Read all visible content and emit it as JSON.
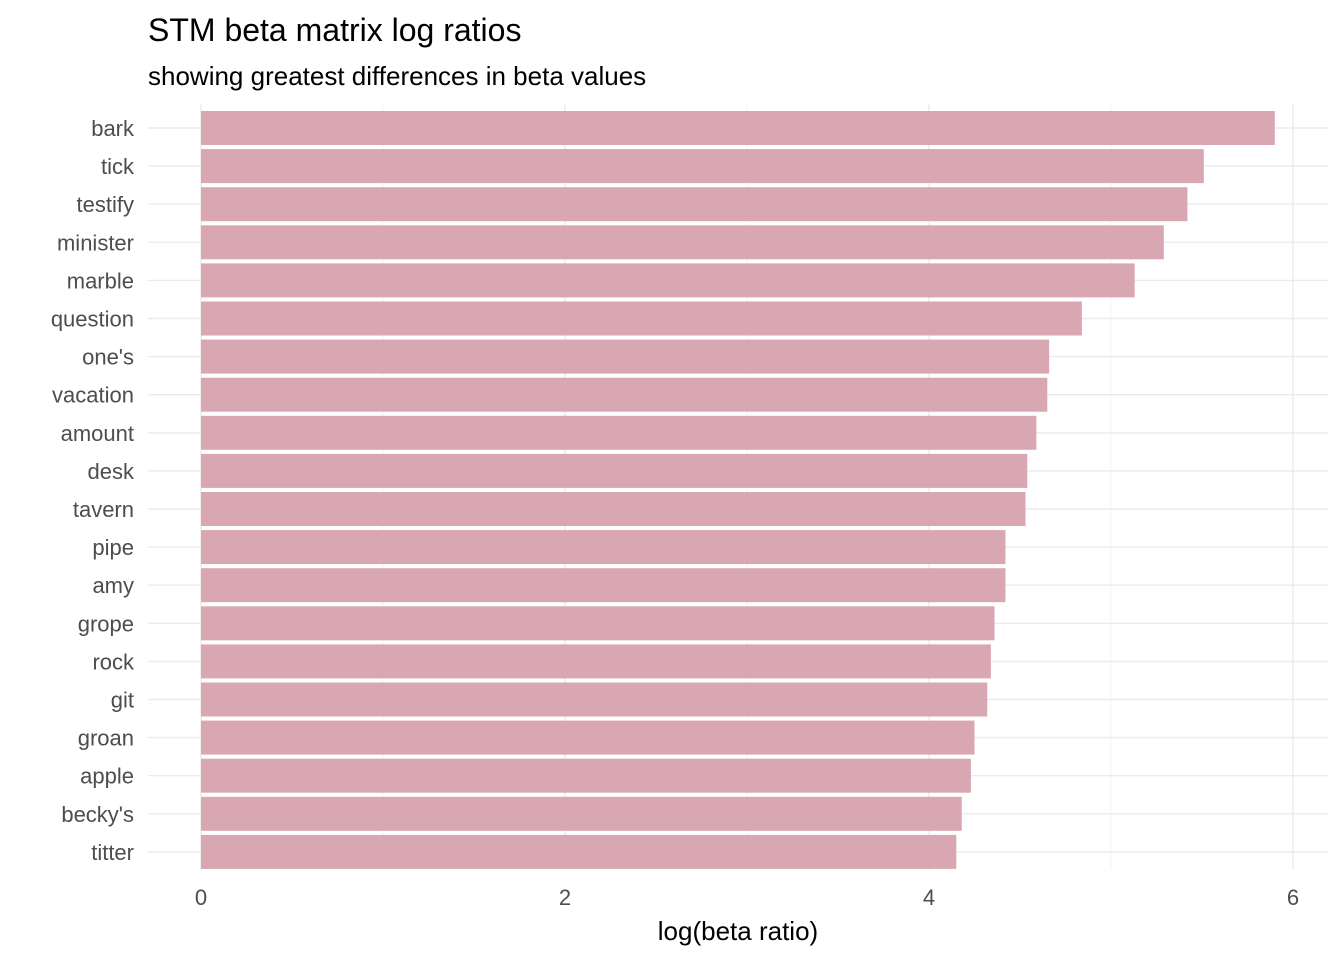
{
  "chart_data": {
    "type": "bar",
    "orientation": "horizontal",
    "title": "STM beta matrix log ratios",
    "subtitle": "showing greatest differences in beta values",
    "xlabel": "log(beta ratio)",
    "ylabel": "",
    "xlim": [
      0,
      6
    ],
    "xticks": [
      0,
      2,
      4,
      6
    ],
    "grid": true,
    "legend": "none",
    "bar_color": "#d8a7b1",
    "categories": [
      "bark",
      "tick",
      "testify",
      "minister",
      "marble",
      "question",
      "one's",
      "vacation",
      "amount",
      "desk",
      "tavern",
      "pipe",
      "amy",
      "grope",
      "rock",
      "git",
      "groan",
      "apple",
      "becky's",
      "titter"
    ],
    "values": [
      5.9,
      5.51,
      5.42,
      5.29,
      5.13,
      4.84,
      4.66,
      4.65,
      4.59,
      4.54,
      4.53,
      4.42,
      4.42,
      4.36,
      4.34,
      4.32,
      4.25,
      4.23,
      4.18,
      4.15
    ]
  }
}
